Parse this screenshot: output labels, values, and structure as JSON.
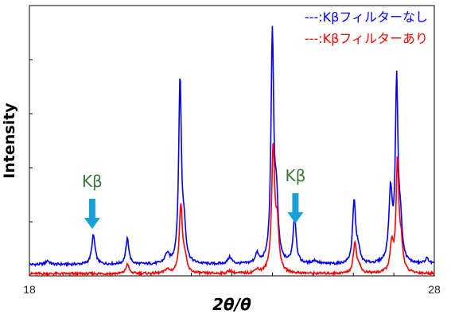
{
  "chart_data": {
    "type": "line",
    "title": "",
    "xlabel": "2θ/θ",
    "ylabel": "Intensity",
    "xlim": [
      18,
      28
    ],
    "x_tick_labels": [
      "18",
      "28"
    ],
    "ylim": [
      0,
      100
    ],
    "grid": false,
    "legend_position": "top-right",
    "series": [
      {
        "name": "---:Kβフィルターなし",
        "color": "#0000ff",
        "baseline": 4.2,
        "peaks": [
          {
            "x": 18.45,
            "height": 1.5,
            "width": 0.05
          },
          {
            "x": 19.58,
            "height": 10.8,
            "width": 0.05
          },
          {
            "x": 20.42,
            "height": 9.5,
            "width": 0.045
          },
          {
            "x": 21.4,
            "height": 3.5,
            "width": 0.06
          },
          {
            "x": 21.72,
            "height": 68.0,
            "width": 0.04
          },
          {
            "x": 21.82,
            "height": 12.0,
            "width": 0.05
          },
          {
            "x": 22.95,
            "height": 2.5,
            "width": 0.06
          },
          {
            "x": 23.62,
            "height": 3.5,
            "width": 0.05
          },
          {
            "x": 24.0,
            "height": 84.0,
            "width": 0.04
          },
          {
            "x": 24.1,
            "height": 22.0,
            "width": 0.05
          },
          {
            "x": 24.55,
            "height": 17.5,
            "width": 0.045
          },
          {
            "x": 25.05,
            "height": 1.2,
            "width": 0.08
          },
          {
            "x": 26.02,
            "height": 23.0,
            "width": 0.045
          },
          {
            "x": 26.12,
            "height": 5.0,
            "width": 0.05
          },
          {
            "x": 26.92,
            "height": 26.0,
            "width": 0.05
          },
          {
            "x": 27.07,
            "height": 66.0,
            "width": 0.038
          },
          {
            "x": 27.16,
            "height": 14.0,
            "width": 0.05
          },
          {
            "x": 27.82,
            "height": 2.0,
            "width": 0.06
          }
        ]
      },
      {
        "name": "---:Kβフィルターあり",
        "color": "#ff0000",
        "baseline": 0.8,
        "peaks": [
          {
            "x": 20.42,
            "height": 3.5,
            "width": 0.045
          },
          {
            "x": 21.4,
            "height": 1.5,
            "width": 0.06
          },
          {
            "x": 21.74,
            "height": 25.5,
            "width": 0.045
          },
          {
            "x": 21.84,
            "height": 5.0,
            "width": 0.05
          },
          {
            "x": 22.95,
            "height": 1.0,
            "width": 0.06
          },
          {
            "x": 23.62,
            "height": 1.5,
            "width": 0.05
          },
          {
            "x": 24.02,
            "height": 46.0,
            "width": 0.045
          },
          {
            "x": 24.12,
            "height": 16.0,
            "width": 0.05
          },
          {
            "x": 26.04,
            "height": 11.5,
            "width": 0.045
          },
          {
            "x": 26.14,
            "height": 2.5,
            "width": 0.05
          },
          {
            "x": 26.95,
            "height": 10.0,
            "width": 0.05
          },
          {
            "x": 27.09,
            "height": 40.0,
            "width": 0.04
          },
          {
            "x": 27.18,
            "height": 10.0,
            "width": 0.05
          }
        ]
      }
    ],
    "annotations": [
      {
        "label": "Kβ",
        "arrow_x": 19.55,
        "arrow_color": "#1aa0d8"
      },
      {
        "label": "Kβ",
        "arrow_x": 24.57,
        "arrow_color": "#1aa0d8"
      }
    ]
  }
}
